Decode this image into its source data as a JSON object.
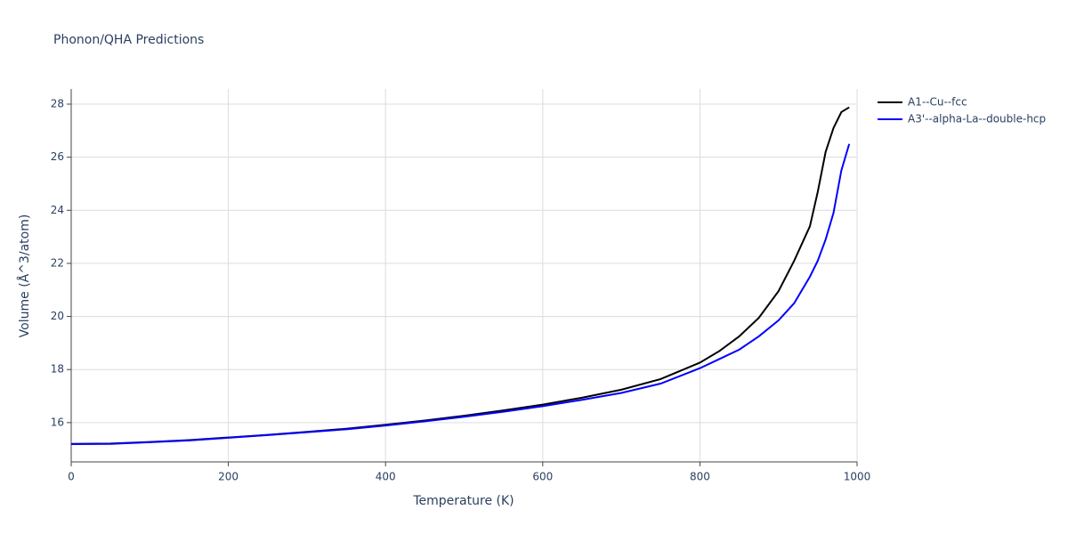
{
  "chart_data": {
    "type": "line",
    "title": "Phonon/QHA Predictions",
    "x_label": "Temperature (K)",
    "y_label": "Volume (Å^3/atom)",
    "x": [
      0,
      50,
      100,
      150,
      200,
      250,
      300,
      350,
      400,
      450,
      500,
      550,
      600,
      650,
      700,
      750,
      800,
      825,
      850,
      875,
      900,
      920,
      940,
      950,
      960,
      970,
      980,
      990
    ],
    "series": [
      {
        "name": "A1--Cu--fcc",
        "color": "#000000",
        "values": [
          15.2,
          15.21,
          15.27,
          15.34,
          15.44,
          15.54,
          15.65,
          15.77,
          15.92,
          16.08,
          16.26,
          16.46,
          16.68,
          16.94,
          17.24,
          17.64,
          18.26,
          18.7,
          19.25,
          19.95,
          20.95,
          22.1,
          23.4,
          24.7,
          26.2,
          27.1,
          27.7,
          27.88
        ]
      },
      {
        "name": "A3'--alpha-La--double-hcp",
        "color": "#0000ff",
        "values": [
          15.19,
          15.2,
          15.26,
          15.33,
          15.43,
          15.53,
          15.64,
          15.75,
          15.89,
          16.05,
          16.22,
          16.41,
          16.62,
          16.86,
          17.12,
          17.47,
          18.05,
          18.4,
          18.75,
          19.25,
          19.85,
          20.5,
          21.5,
          22.1,
          22.9,
          23.9,
          25.5,
          26.5
        ]
      }
    ],
    "xlim": [
      0,
      1000
    ],
    "xticks": [
      0,
      200,
      400,
      600,
      800,
      1000
    ],
    "ylim": [
      14.52,
      28.57
    ],
    "yticks": [
      16,
      18,
      20,
      22,
      24,
      26,
      28
    ],
    "grid": true,
    "legend": "outside-right"
  }
}
